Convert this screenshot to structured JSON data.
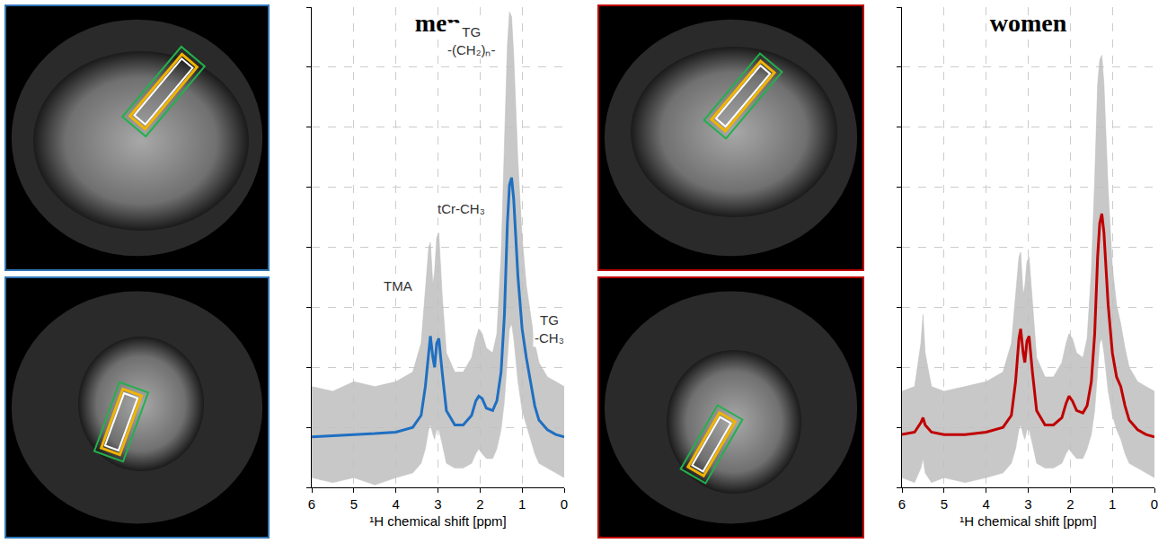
{
  "chart_data": [
    {
      "type": "line",
      "title": "men",
      "x_label": "¹H chemical shift [ppm]",
      "color": "#1f6fc1",
      "x": [
        6.0,
        5.5,
        5.0,
        4.5,
        4.0,
        3.6,
        3.4,
        3.3,
        3.22,
        3.18,
        3.12,
        3.08,
        3.03,
        2.98,
        2.9,
        2.8,
        2.6,
        2.4,
        2.2,
        2.1,
        2.03,
        1.95,
        1.85,
        1.7,
        1.6,
        1.5,
        1.42,
        1.35,
        1.3,
        1.25,
        1.2,
        1.1,
        1.0,
        0.9,
        0.8,
        0.7,
        0.6,
        0.4,
        0.2,
        0.0
      ],
      "values": [
        10.5,
        10.8,
        11.0,
        11.2,
        11.5,
        12.5,
        15,
        21,
        29,
        31.5,
        27,
        25,
        30,
        31,
        24,
        16,
        13,
        13,
        15,
        18,
        19,
        18.5,
        16.5,
        16,
        18,
        24,
        36,
        55,
        63,
        64.5,
        60,
        44,
        33,
        27,
        22,
        17,
        14,
        12,
        11,
        10.5
      ],
      "range_high": [
        21,
        20,
        22,
        21,
        22,
        24,
        30,
        42,
        50,
        51,
        42,
        45,
        52,
        53,
        40,
        28,
        24,
        24,
        27,
        31,
        33,
        32,
        29,
        28,
        32,
        48,
        70,
        92,
        99,
        98,
        90,
        68,
        52,
        42,
        36,
        30,
        26,
        23,
        22,
        21
      ],
      "range_low": [
        2,
        1,
        2,
        0.5,
        2,
        3,
        5,
        8,
        12,
        13,
        11,
        10,
        12,
        12,
        9,
        5,
        4,
        4,
        5,
        7,
        8,
        7,
        6,
        6,
        8,
        12,
        18,
        28,
        33,
        34,
        31,
        22,
        16,
        13,
        10,
        7,
        5,
        4,
        3,
        2
      ],
      "xlim": [
        6,
        0
      ],
      "xticks": [
        6,
        5,
        4,
        3,
        2,
        1,
        0
      ],
      "ylim": [
        0,
        100
      ],
      "yticks": [
        0,
        12.5,
        25,
        37.5,
        50,
        62.5,
        75,
        87.5,
        100
      ],
      "grid": true,
      "tick_labels": "x",
      "annotations": [
        {
          "lines": [
            "TG",
            "-(CH₂)ₙ-"
          ],
          "x": 2.2,
          "y": 93
        },
        {
          "lines": [
            "tCr-CH₃"
          ],
          "x": 2.45,
          "y": 58
        },
        {
          "lines": [
            "TMA"
          ],
          "x": 3.96,
          "y": 42
        },
        {
          "lines": [
            "TG",
            "-CH₃"
          ],
          "x": 0.35,
          "y": 33
        }
      ]
    },
    {
      "type": "line",
      "title": "women",
      "x_label": "¹H chemical shift [ppm]",
      "color": "#c00000",
      "x": [
        6.0,
        5.7,
        5.55,
        5.5,
        5.45,
        5.3,
        5.0,
        4.5,
        4.0,
        3.6,
        3.4,
        3.3,
        3.22,
        3.18,
        3.12,
        3.08,
        3.03,
        2.98,
        2.9,
        2.8,
        2.6,
        2.4,
        2.2,
        2.1,
        2.03,
        1.95,
        1.85,
        1.7,
        1.6,
        1.5,
        1.42,
        1.35,
        1.3,
        1.25,
        1.2,
        1.1,
        1.0,
        0.9,
        0.8,
        0.7,
        0.6,
        0.4,
        0.2,
        0.0
      ],
      "values": [
        11,
        11.5,
        13.5,
        14.5,
        13,
        11.5,
        11,
        11,
        11.5,
        12.5,
        15,
        22,
        31,
        33,
        28,
        26,
        30.5,
        31.5,
        24,
        16,
        13,
        13,
        14.5,
        17.5,
        19,
        18,
        16,
        15.5,
        17,
        22,
        32,
        48,
        55,
        57,
        53,
        38,
        28,
        23,
        21,
        17,
        14,
        12,
        11,
        10.5
      ],
      "range_high": [
        20,
        21,
        30,
        36,
        28,
        21,
        20,
        21,
        22,
        24,
        30,
        40,
        48,
        49,
        40,
        42,
        47,
        48,
        38,
        27,
        23,
        23,
        26,
        30,
        32,
        31,
        28,
        27,
        31,
        45,
        64,
        84,
        89,
        90,
        84,
        62,
        46,
        38,
        34,
        29,
        25,
        22,
        21,
        20
      ],
      "range_low": [
        2,
        1,
        4,
        6,
        3,
        1,
        2,
        1,
        2,
        3,
        5,
        8,
        12,
        13,
        11,
        10,
        12,
        12,
        9,
        5,
        4,
        4,
        5,
        7,
        8,
        7,
        6,
        6,
        8,
        11,
        16,
        25,
        30,
        31,
        28,
        20,
        15,
        12,
        10,
        7,
        5,
        4,
        3,
        2
      ],
      "xlim": [
        6,
        0
      ],
      "xticks": [
        6,
        5,
        4,
        3,
        2,
        1,
        0
      ],
      "ylim": [
        0,
        100
      ],
      "yticks": [
        0,
        12.5,
        25,
        37.5,
        50,
        62.5,
        75,
        87.5,
        100
      ],
      "grid": true,
      "tick_labels": "x",
      "annotations": []
    }
  ]
}
